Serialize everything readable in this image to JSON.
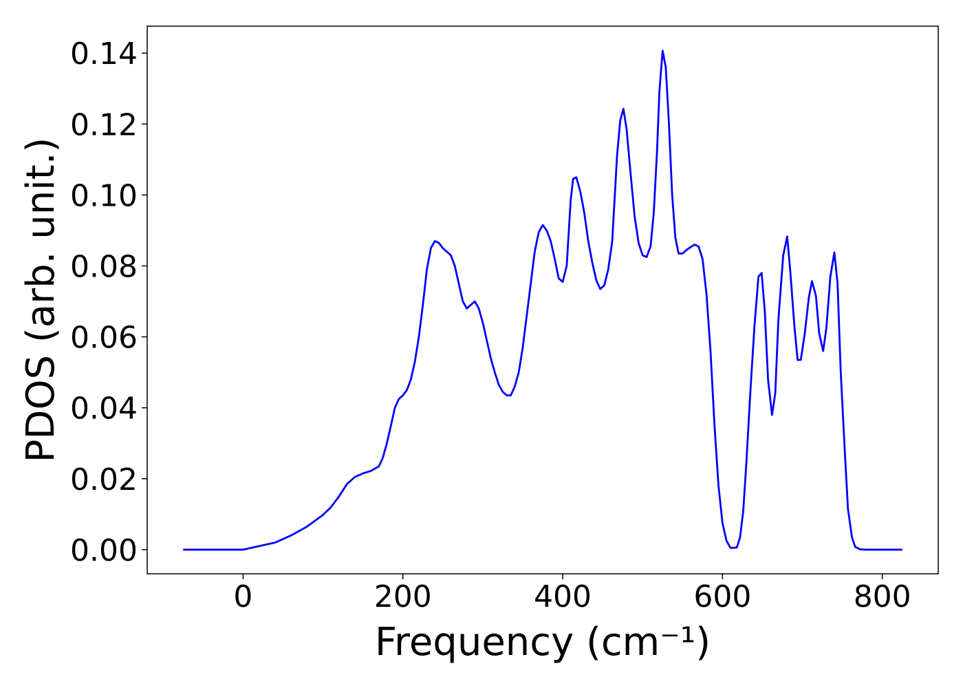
{
  "chart_data": {
    "type": "line",
    "xlabel": "Frequency (cm⁻¹)",
    "ylabel": "PDOS (arb. unit.)",
    "xlim": [
      -120,
      870
    ],
    "ylim": [
      -0.0068,
      0.1476
    ],
    "xticks": [
      0,
      200,
      400,
      600,
      800
    ],
    "yticks": [
      {
        "value": 0,
        "label": "0.00"
      },
      {
        "value": 0.02,
        "label": "0.02"
      },
      {
        "value": 0.04,
        "label": "0.04"
      },
      {
        "value": 0.06,
        "label": "0.06"
      },
      {
        "value": 0.08,
        "label": "0.08"
      },
      {
        "value": 0.1,
        "label": "0.10"
      },
      {
        "value": 0.12,
        "label": "0.12"
      },
      {
        "value": 0.14,
        "label": "0.14"
      }
    ],
    "x": [
      -75,
      0,
      20,
      40,
      60,
      80,
      100,
      110,
      120,
      130,
      140,
      150,
      160,
      170,
      175,
      180,
      185,
      190,
      195,
      200,
      205,
      210,
      215,
      220,
      225,
      230,
      235,
      240,
      245,
      250,
      255,
      260,
      265,
      270,
      275,
      280,
      285,
      290,
      295,
      300,
      305,
      310,
      315,
      320,
      325,
      330,
      335,
      340,
      345,
      350,
      355,
      360,
      365,
      370,
      375,
      380,
      385,
      390,
      395,
      400,
      405,
      410,
      413,
      417,
      422,
      427,
      432,
      437,
      442,
      447,
      452,
      457,
      462,
      468,
      472,
      476,
      480,
      485,
      490,
      495,
      500,
      505,
      510,
      514,
      518,
      521,
      525,
      529,
      533,
      537,
      541,
      545,
      550,
      555,
      560,
      565,
      570,
      575,
      580,
      585,
      590,
      595,
      600,
      605,
      610,
      618,
      622,
      626,
      630,
      635,
      640,
      645,
      649,
      653,
      657,
      662,
      666,
      670,
      676,
      681,
      685,
      690,
      694,
      698,
      703,
      708,
      712,
      717,
      721,
      726,
      730,
      735,
      740,
      744,
      748,
      753,
      757,
      762,
      766,
      772,
      780,
      825
    ],
    "series": [
      {
        "name": "PDOS",
        "color": "#0000ff",
        "values": [
          0,
          0,
          0.001,
          0.002,
          0.004,
          0.0065,
          0.0098,
          0.012,
          0.015,
          0.0185,
          0.0205,
          0.0215,
          0.0222,
          0.0235,
          0.026,
          0.03,
          0.035,
          0.04,
          0.0425,
          0.0435,
          0.045,
          0.048,
          0.053,
          0.06,
          0.069,
          0.079,
          0.085,
          0.087,
          0.0865,
          0.085,
          0.084,
          0.083,
          0.08,
          0.075,
          0.07,
          0.068,
          0.069,
          0.07,
          0.068,
          0.064,
          0.059,
          0.054,
          0.05,
          0.0465,
          0.0445,
          0.0435,
          0.0435,
          0.046,
          0.05,
          0.057,
          0.066,
          0.075,
          0.084,
          0.0895,
          0.0915,
          0.09,
          0.087,
          0.082,
          0.0765,
          0.0755,
          0.08,
          0.0985,
          0.1045,
          0.105,
          0.101,
          0.095,
          0.087,
          0.081,
          0.076,
          0.0735,
          0.0745,
          0.079,
          0.087,
          0.111,
          0.121,
          0.1243,
          0.1185,
          0.106,
          0.094,
          0.0865,
          0.083,
          0.0825,
          0.0855,
          0.095,
          0.112,
          0.129,
          0.1407,
          0.136,
          0.12,
          0.1,
          0.088,
          0.0835,
          0.0835,
          0.0845,
          0.0853,
          0.086,
          0.0855,
          0.082,
          0.072,
          0.056,
          0.035,
          0.018,
          0.0075,
          0.0025,
          0.0005,
          0.0006,
          0.0035,
          0.011,
          0.025,
          0.045,
          0.063,
          0.077,
          0.078,
          0.067,
          0.048,
          0.038,
          0.044,
          0.065,
          0.083,
          0.0883,
          0.078,
          0.063,
          0.0535,
          0.0535,
          0.061,
          0.071,
          0.0757,
          0.0715,
          0.061,
          0.056,
          0.0625,
          0.077,
          0.0838,
          0.075,
          0.05,
          0.028,
          0.0115,
          0.0035,
          0.0008,
          0.0001,
          0,
          0
        ]
      }
    ]
  }
}
